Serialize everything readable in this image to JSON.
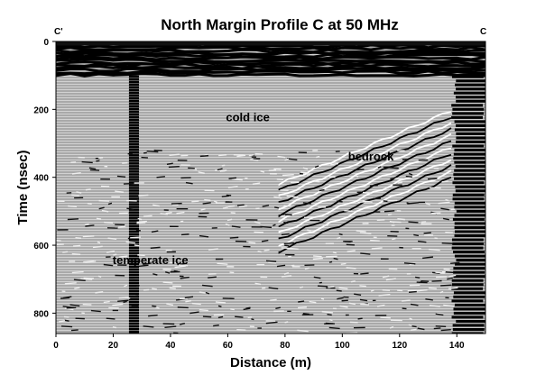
{
  "chart_data": {
    "type": "heatmap",
    "title": "North Margin Profile C at 50 MHz",
    "xlabel": "Distance (m)",
    "ylabel": "Time (nsec)",
    "xlim": [
      0,
      150
    ],
    "ylim": [
      0,
      860
    ],
    "y_inverted": true,
    "x_ticks": [
      0,
      20,
      40,
      60,
      80,
      100,
      120,
      140
    ],
    "y_ticks": [
      0,
      200,
      400,
      600,
      800
    ],
    "corner_labels": {
      "left": "C'",
      "right": "C"
    },
    "grid": false,
    "colormap": "grayscale radar wiggle",
    "annotations": [
      {
        "text": "cold ice",
        "x": 67,
        "y": 235
      },
      {
        "text": "bedrock",
        "x": 110,
        "y": 350
      },
      {
        "text": "temperate ice",
        "x": 33,
        "y": 655
      }
    ]
  }
}
